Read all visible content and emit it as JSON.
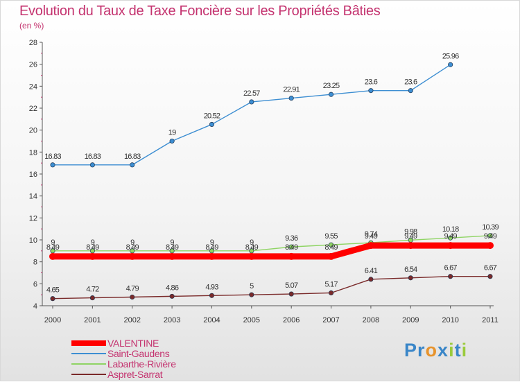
{
  "header": {
    "title": "Evolution du Taux de Taxe Foncière sur les Propriétés Bâties",
    "unit": "(en %)"
  },
  "chart_data": {
    "type": "line",
    "title": "Evolution du Taux de Taxe Foncière sur les Propriétés Bâties",
    "ylabel": "(en %)",
    "xlabel": "",
    "x": [
      "2000",
      "2001",
      "2002",
      "2003",
      "2004",
      "2005",
      "2006",
      "2007",
      "2008",
      "2009",
      "2010",
      "2011"
    ],
    "ylim": [
      4,
      28
    ],
    "yticks": [
      4,
      6,
      8,
      10,
      12,
      14,
      16,
      18,
      20,
      22,
      24,
      26,
      28
    ],
    "grid": false,
    "legend_position": "bottom-left",
    "series": [
      {
        "name": "VALENTINE",
        "color": "#ff0000",
        "values": [
          8.49,
          8.49,
          8.49,
          8.49,
          8.49,
          8.49,
          8.49,
          8.49,
          9.49,
          9.49,
          9.49,
          9.49
        ],
        "labels": [
          "8.49",
          "8.49",
          "8.49",
          "8.49",
          "8.49",
          "8.49",
          "8.49",
          "8.49",
          "9.49",
          "9.49",
          "9.49",
          "9.49"
        ]
      },
      {
        "name": "Saint-Gaudens",
        "color": "#3d8ed2",
        "values": [
          16.83,
          16.83,
          16.83,
          19,
          20.52,
          22.57,
          22.91,
          23.25,
          23.6,
          23.6,
          25.96,
          null
        ],
        "labels": [
          "16.83",
          "16.83",
          "16.83",
          "19",
          "20.52",
          "22.57",
          "22.91",
          "23.25",
          "23.6",
          "23.6",
          "25.96",
          ""
        ]
      },
      {
        "name": "Labarthe-Rivière",
        "color": "#8fd464",
        "values": [
          9,
          9,
          9,
          9,
          9,
          9,
          9.36,
          9.55,
          9.74,
          9.98,
          10.18,
          10.39
        ],
        "labels": [
          "9",
          "9",
          "9",
          "9",
          "9",
          "9",
          "9.36",
          "9.55",
          "9.74",
          "9.98",
          "10.18",
          "10.39"
        ]
      },
      {
        "name": "Aspret-Sarrat",
        "color": "#7a2a2a",
        "values": [
          4.65,
          4.72,
          4.79,
          4.86,
          4.93,
          5,
          5.07,
          5.17,
          6.41,
          6.54,
          6.67,
          6.67
        ],
        "labels": [
          "4.65",
          "4.72",
          "4.79",
          "4.86",
          "4.93",
          "5",
          "5.07",
          "5.17",
          "6.41",
          "6.54",
          "6.67",
          "6.67"
        ]
      }
    ]
  },
  "logo": {
    "letters": [
      "P",
      "r",
      "o",
      "x",
      "i",
      "t",
      "i"
    ],
    "colors": [
      "#3a86c8",
      "#3a86c8",
      "#e7932c",
      "#3a86c8",
      "#9acb3c",
      "#3a86c8",
      "#9acb3c"
    ]
  }
}
